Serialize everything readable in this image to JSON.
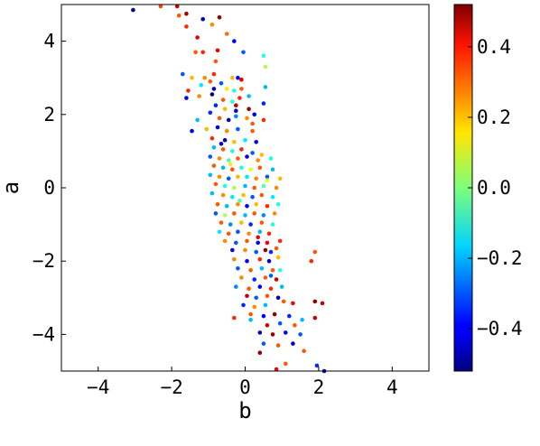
{
  "chart_data": {
    "type": "scatter",
    "xlabel": "b",
    "ylabel": "a",
    "xlim": [
      -5,
      5
    ],
    "ylim": [
      -5,
      5
    ],
    "x_ticks": [
      -4,
      -2,
      0,
      2,
      4
    ],
    "x_tick_labels": [
      "−4",
      "−2",
      "0",
      "2",
      "4"
    ],
    "y_ticks": [
      -4,
      -2,
      0,
      2,
      4
    ],
    "y_tick_labels": [
      "−4",
      "−2",
      "0",
      "2",
      "4"
    ],
    "grid": false,
    "colormap": "jet",
    "colorbar": {
      "range": [
        -0.52,
        0.52
      ],
      "ticks": [
        -0.4,
        -0.2,
        0.0,
        0.2,
        0.4
      ],
      "tick_labels": [
        "−0.4",
        "−0.2",
        "0.0",
        "0.2",
        "0.4"
      ]
    },
    "point_fields": [
      "b",
      "a",
      "value"
    ],
    "points": [
      [
        -3.05,
        4.85,
        -0.48
      ],
      [
        -2.3,
        4.95,
        0.32
      ],
      [
        -1.85,
        4.95,
        0.45
      ],
      [
        -1.8,
        4.7,
        0.3
      ],
      [
        -1.6,
        4.75,
        0.48
      ],
      [
        -1.15,
        4.6,
        -0.45
      ],
      [
        -0.7,
        4.65,
        0.5
      ],
      [
        -1.6,
        4.4,
        0.35
      ],
      [
        -0.9,
        4.45,
        0.25
      ],
      [
        -1.3,
        4.1,
        0.42
      ],
      [
        -0.5,
        4.2,
        0.28
      ],
      [
        -0.3,
        4.0,
        -0.4
      ],
      [
        -1.35,
        3.7,
        0.3
      ],
      [
        -1.15,
        3.7,
        0.35
      ],
      [
        -0.75,
        3.75,
        0.4
      ],
      [
        -0.05,
        3.7,
        -0.3
      ],
      [
        -0.8,
        3.45,
        0.3
      ],
      [
        0.5,
        3.6,
        -0.1
      ],
      [
        0.55,
        3.3,
        0.05
      ],
      [
        -0.85,
        3.1,
        0.35
      ],
      [
        -1.1,
        3.0,
        0.25
      ],
      [
        -0.35,
        3.0,
        0.2
      ],
      [
        -0.2,
        3.0,
        -0.4
      ],
      [
        -0.1,
        2.95,
        0.42
      ],
      [
        -1.7,
        3.1,
        -0.3
      ],
      [
        -1.45,
        3.0,
        0.2
      ],
      [
        -1.2,
        2.8,
        -0.15
      ],
      [
        -0.95,
        2.9,
        0.3
      ],
      [
        -0.85,
        2.7,
        -0.45
      ],
      [
        -0.65,
        2.85,
        -0.3
      ],
      [
        -0.5,
        2.7,
        0.15
      ],
      [
        -0.3,
        2.65,
        -0.1
      ],
      [
        -0.1,
        2.7,
        0.3
      ],
      [
        0.55,
        2.75,
        -0.2
      ],
      [
        -1.55,
        2.65,
        0.35
      ],
      [
        -1.6,
        2.45,
        -0.4
      ],
      [
        -1.25,
        2.5,
        0.25
      ],
      [
        -0.9,
        2.55,
        -0.5
      ],
      [
        -0.6,
        2.4,
        0.3
      ],
      [
        -0.35,
        2.35,
        -0.1
      ],
      [
        -0.15,
        2.45,
        0.35
      ],
      [
        0.1,
        2.5,
        -0.2
      ],
      [
        0.5,
        2.3,
        -0.35
      ],
      [
        -0.8,
        2.25,
        -0.35
      ],
      [
        -0.55,
        2.15,
        0.2
      ],
      [
        -0.25,
        2.1,
        -0.4
      ],
      [
        0.1,
        2.15,
        0.5
      ],
      [
        0.25,
        2.0,
        -0.4
      ],
      [
        -1.3,
        1.85,
        -0.2
      ],
      [
        -0.95,
        2.05,
        -0.35
      ],
      [
        -0.7,
        1.9,
        0.3
      ],
      [
        -0.45,
        1.85,
        -0.45
      ],
      [
        -0.25,
        1.95,
        -0.25
      ],
      [
        0.05,
        1.9,
        0.25
      ],
      [
        0.5,
        1.85,
        0.35
      ],
      [
        -1.45,
        1.55,
        -0.4
      ],
      [
        -1.05,
        1.6,
        0.2
      ],
      [
        -0.75,
        1.65,
        -0.4
      ],
      [
        -0.5,
        1.55,
        0.25
      ],
      [
        -0.2,
        1.6,
        -0.3
      ],
      [
        0.2,
        1.55,
        0.3
      ],
      [
        -0.9,
        1.35,
        0.35
      ],
      [
        -0.55,
        1.3,
        -0.45
      ],
      [
        -0.3,
        1.25,
        0.2
      ],
      [
        0.0,
        1.3,
        -0.15
      ],
      [
        0.3,
        1.25,
        -0.4
      ],
      [
        -0.85,
        1.1,
        -0.2
      ],
      [
        -0.6,
        1.05,
        0.3
      ],
      [
        -0.35,
        1.0,
        -0.1
      ],
      [
        -0.1,
        1.05,
        0.35
      ],
      [
        0.2,
        0.95,
        -0.3
      ],
      [
        0.45,
        0.9,
        0.2
      ],
      [
        -0.95,
        0.85,
        -0.3
      ],
      [
        -0.7,
        0.8,
        0.25
      ],
      [
        -0.45,
        0.75,
        -0.05
      ],
      [
        -0.2,
        0.8,
        0.3
      ],
      [
        0.05,
        0.85,
        -0.4
      ],
      [
        0.35,
        0.75,
        0.25
      ],
      [
        0.7,
        0.8,
        -0.1
      ],
      [
        -0.85,
        0.6,
        0.3
      ],
      [
        -0.6,
        0.55,
        -0.2
      ],
      [
        -0.35,
        0.5,
        0.3
      ],
      [
        -0.1,
        0.55,
        -0.1
      ],
      [
        0.15,
        0.5,
        0.1
      ],
      [
        0.4,
        0.55,
        0.3
      ],
      [
        0.75,
        0.5,
        -0.2
      ],
      [
        -0.95,
        0.35,
        -0.2
      ],
      [
        -0.7,
        0.3,
        0.25
      ],
      [
        -0.45,
        0.25,
        -0.3
      ],
      [
        -0.2,
        0.3,
        0.2
      ],
      [
        0.05,
        0.3,
        -0.15
      ],
      [
        0.3,
        0.25,
        0.25
      ],
      [
        0.6,
        0.3,
        -0.3
      ],
      [
        0.95,
        0.25,
        0.2
      ],
      [
        -0.8,
        0.1,
        0.3
      ],
      [
        -0.55,
        0.05,
        -0.1
      ],
      [
        -0.3,
        0.0,
        0.05
      ],
      [
        0.0,
        0.05,
        -0.2
      ],
      [
        0.25,
        0.0,
        0.3
      ],
      [
        0.5,
        0.05,
        -0.05
      ],
      [
        0.85,
        0.0,
        0.25
      ],
      [
        -0.9,
        -0.15,
        -0.2
      ],
      [
        -0.6,
        -0.2,
        0.25
      ],
      [
        -0.35,
        -0.25,
        -0.15
      ],
      [
        -0.05,
        -0.2,
        0.2
      ],
      [
        0.2,
        -0.25,
        -0.3
      ],
      [
        0.45,
        -0.2,
        0.3
      ],
      [
        0.75,
        -0.25,
        -0.15
      ],
      [
        -0.75,
        -0.45,
        0.3
      ],
      [
        -0.5,
        -0.5,
        -0.2
      ],
      [
        -0.2,
        -0.45,
        0.25
      ],
      [
        0.05,
        -0.5,
        -0.4
      ],
      [
        0.3,
        -0.45,
        0.2
      ],
      [
        0.6,
        -0.5,
        0.35
      ],
      [
        0.9,
        -0.45,
        -0.1
      ],
      [
        -0.8,
        -0.7,
        -0.3
      ],
      [
        -0.55,
        -0.75,
        0.05
      ],
      [
        -0.3,
        -0.7,
        0.3
      ],
      [
        0.0,
        -0.75,
        -0.2
      ],
      [
        0.25,
        -0.7,
        0.3
      ],
      [
        0.5,
        -0.75,
        -0.25
      ],
      [
        0.8,
        -0.7,
        0.25
      ],
      [
        -0.65,
        -0.95,
        0.3
      ],
      [
        -0.4,
        -1.0,
        -0.25
      ],
      [
        -0.1,
        -0.95,
        0.2
      ],
      [
        0.15,
        -1.0,
        -0.35
      ],
      [
        0.45,
        -0.95,
        0.3
      ],
      [
        0.75,
        -1.0,
        -0.1
      ],
      [
        -0.7,
        -1.2,
        -0.15
      ],
      [
        -0.45,
        -1.25,
        0.3
      ],
      [
        -0.2,
        -1.2,
        -0.3
      ],
      [
        0.1,
        -1.25,
        0.25
      ],
      [
        0.4,
        -1.2,
        -0.2
      ],
      [
        0.65,
        -1.25,
        0.35
      ],
      [
        -0.55,
        -1.45,
        0.25
      ],
      [
        -0.25,
        -1.5,
        -0.3
      ],
      [
        0.05,
        -1.45,
        0.3
      ],
      [
        0.35,
        -1.5,
        -0.4
      ],
      [
        0.6,
        -1.5,
        0.4
      ],
      [
        0.95,
        -1.45,
        0.35
      ],
      [
        -0.35,
        -1.7,
        -0.4
      ],
      [
        0.0,
        -1.7,
        0.25
      ],
      [
        0.3,
        -1.75,
        -0.3
      ],
      [
        0.55,
        -1.7,
        0.5
      ],
      [
        0.7,
        -1.75,
        -0.35
      ],
      [
        0.85,
        -1.65,
        0.3
      ],
      [
        1.9,
        -1.75,
        0.3
      ],
      [
        -0.3,
        -1.95,
        0.25
      ],
      [
        0.05,
        -2.0,
        -0.4
      ],
      [
        0.4,
        -1.95,
        0.35
      ],
      [
        0.65,
        -2.0,
        -0.45
      ],
      [
        0.9,
        -1.9,
        0.2
      ],
      [
        -0.2,
        -2.2,
        -0.3
      ],
      [
        0.15,
        -2.25,
        0.3
      ],
      [
        0.45,
        -2.2,
        -0.2
      ],
      [
        0.75,
        -2.25,
        0.3
      ],
      [
        1.8,
        -2.0,
        0.35
      ],
      [
        -0.1,
        -2.45,
        0.25
      ],
      [
        0.25,
        -2.5,
        -0.35
      ],
      [
        0.55,
        -2.45,
        0.3
      ],
      [
        0.85,
        -2.5,
        0.45
      ],
      [
        -0.25,
        -2.7,
        -0.25
      ],
      [
        0.1,
        -2.75,
        0.3
      ],
      [
        0.4,
        -2.7,
        -0.4
      ],
      [
        0.7,
        -2.75,
        0.35
      ],
      [
        1.0,
        -2.7,
        -0.2
      ],
      [
        0.05,
        -2.95,
        0.45
      ],
      [
        0.3,
        -3.0,
        -0.3
      ],
      [
        0.6,
        -2.95,
        0.3
      ],
      [
        0.9,
        -3.0,
        -0.45
      ],
      [
        -0.05,
        -3.2,
        -0.35
      ],
      [
        0.25,
        -3.25,
        0.25
      ],
      [
        0.55,
        -3.2,
        -0.2
      ],
      [
        1.05,
        -3.1,
        0.3
      ],
      [
        1.3,
        -3.15,
        0.4
      ],
      [
        1.9,
        -3.1,
        0.5
      ],
      [
        2.1,
        -3.15,
        0.45
      ],
      [
        0.15,
        -3.45,
        0.3
      ],
      [
        0.5,
        -3.5,
        -0.4
      ],
      [
        0.8,
        -3.45,
        0.5
      ],
      [
        1.2,
        -3.5,
        -0.35
      ],
      [
        -0.3,
        -3.55,
        0.35
      ],
      [
        0.6,
        -3.75,
        0.45
      ],
      [
        0.95,
        -3.7,
        -0.3
      ],
      [
        1.35,
        -3.75,
        0.3
      ],
      [
        0.4,
        -3.95,
        -0.45
      ],
      [
        0.75,
        -4.0,
        0.5
      ],
      [
        1.1,
        -3.95,
        -0.4
      ],
      [
        1.5,
        -4.0,
        -0.3
      ],
      [
        1.55,
        -3.6,
        -0.2
      ],
      [
        1.9,
        -3.55,
        0.45
      ],
      [
        0.5,
        -4.25,
        -0.3
      ],
      [
        0.9,
        -4.3,
        0.3
      ],
      [
        1.3,
        -4.25,
        -0.45
      ],
      [
        0.4,
        -4.5,
        0.5
      ],
      [
        1.6,
        -4.45,
        0.3
      ],
      [
        1.1,
        -4.8,
        0.3
      ],
      [
        1.95,
        -4.85,
        -0.35
      ],
      [
        2.15,
        -5.0,
        -0.45
      ],
      [
        0.85,
        -4.95,
        0.4
      ],
      [
        -0.25,
        2.25,
        0.45
      ],
      [
        0.2,
        1.75,
        0.3
      ],
      [
        -0.65,
        1.2,
        -0.4
      ],
      [
        0.6,
        0.2,
        0.1
      ],
      [
        -0.15,
        -0.35,
        -0.05
      ],
      [
        0.35,
        -1.35,
        0.4
      ],
      [
        0.7,
        -2.4,
        -0.3
      ],
      [
        0.15,
        -3.6,
        -0.2
      ],
      [
        0.95,
        -2.25,
        -0.1
      ],
      [
        -0.4,
        0.65,
        0.15
      ]
    ]
  }
}
